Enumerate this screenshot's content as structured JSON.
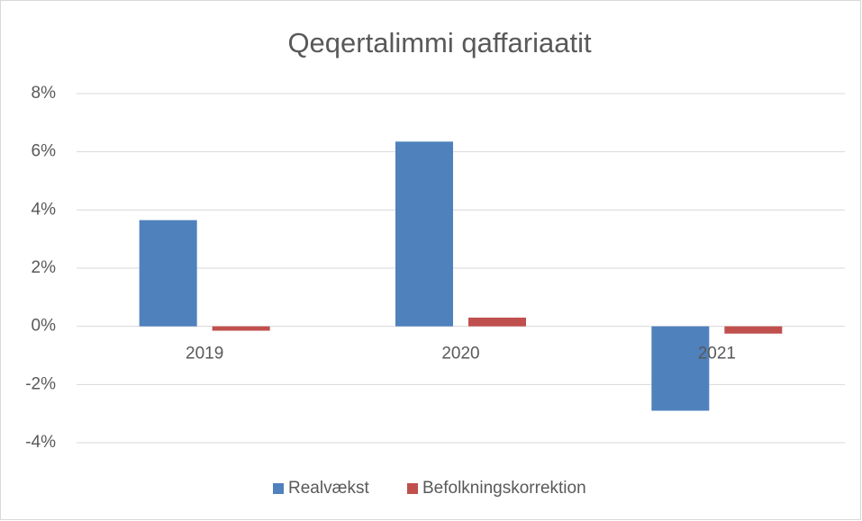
{
  "chart_data": {
    "type": "bar",
    "title": "Qeqertalimmi qaffariaatit",
    "categories": [
      "2019",
      "2020",
      "2021"
    ],
    "series": [
      {
        "name": "Realvækst",
        "color": "#4f81bd",
        "values": [
          3.65,
          6.35,
          -2.9
        ]
      },
      {
        "name": "Befolkningskorrektion",
        "color": "#c0504d",
        "values": [
          -0.15,
          0.3,
          -0.25
        ]
      }
    ],
    "ylim": [
      -4,
      8
    ],
    "yticks": [
      {
        "value": -4,
        "label": "-4%"
      },
      {
        "value": -2,
        "label": "-2%"
      },
      {
        "value": 0,
        "label": "0%"
      },
      {
        "value": 2,
        "label": "2%"
      },
      {
        "value": 4,
        "label": "4%"
      },
      {
        "value": 6,
        "label": "6%"
      },
      {
        "value": 8,
        "label": "8%"
      }
    ],
    "grid": true,
    "legend": "bottom"
  }
}
